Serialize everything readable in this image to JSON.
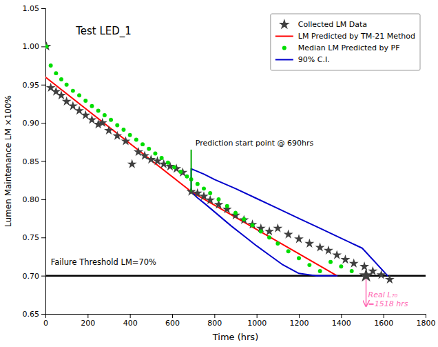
{
  "chart_data": {
    "type": "scatter",
    "title": "Test LED_1",
    "xlabel": "Time (hrs)",
    "ylabel": "Lumen Maintenance LM ×100%",
    "xlim": [
      0,
      1800
    ],
    "ylim": [
      0.65,
      1.05
    ],
    "xticks": [
      0,
      200,
      400,
      600,
      800,
      1000,
      1200,
      1400,
      1600,
      1800
    ],
    "yticks": [
      0.65,
      {
        "value": 0.7,
        "label": "0.70"
      },
      0.75,
      {
        "value": 0.8,
        "label": "0.80"
      },
      0.85,
      {
        "value": 0.9,
        "label": "0.90"
      },
      0.95,
      {
        "value": 1.0,
        "label": "1.00"
      },
      1.05
    ],
    "grid": false,
    "legend": "upper right",
    "series": [
      {
        "name": "Collected LM Data",
        "type": "scatter",
        "marker": "star",
        "color": "#404040",
        "x": [
          5,
          25,
          50,
          75,
          100,
          130,
          160,
          190,
          220,
          250,
          270,
          300,
          340,
          380,
          410,
          440,
          470,
          500,
          530,
          560,
          590,
          620,
          650,
          690,
          720,
          750,
          780,
          820,
          860,
          900,
          940,
          980,
          1020,
          1060,
          1100,
          1150,
          1200,
          1250,
          1300,
          1340,
          1380,
          1420,
          1460,
          1510,
          1550,
          1590,
          1630
        ],
        "values": [
          1.0,
          0.946,
          0.941,
          0.936,
          0.928,
          0.922,
          0.916,
          0.91,
          0.904,
          0.898,
          0.9,
          0.89,
          0.883,
          0.876,
          0.846,
          0.862,
          0.857,
          0.852,
          0.85,
          0.846,
          0.843,
          0.84,
          0.835,
          0.81,
          0.808,
          0.804,
          0.799,
          0.793,
          0.787,
          0.779,
          0.773,
          0.767,
          0.762,
          0.758,
          0.762,
          0.754,
          0.748,
          0.742,
          0.737,
          0.733,
          0.727,
          0.721,
          0.716,
          0.712,
          0.706,
          0.701,
          0.695
        ]
      },
      {
        "name": "LM Predicted by TM-21 Method",
        "type": "line",
        "line_style": "solid",
        "color": "#ff0000",
        "x": [
          0,
          690,
          1380
        ],
        "values": [
          0.96,
          0.81,
          0.7
        ]
      },
      {
        "name": "Median LM Predicted by PF",
        "type": "scatter",
        "marker": "circle",
        "color": "#00dd00",
        "x": [
          5,
          25,
          50,
          75,
          100,
          130,
          160,
          190,
          220,
          250,
          280,
          310,
          340,
          370,
          400,
          430,
          460,
          490,
          520,
          550,
          580,
          610,
          640,
          670,
          690,
          720,
          750,
          780,
          820,
          860,
          900,
          940,
          980,
          1020,
          1060,
          1100,
          1150,
          1200,
          1250,
          1300,
          1350,
          1400,
          1450,
          1518
        ],
        "values": [
          1.0,
          0.975,
          0.965,
          0.957,
          0.95,
          0.942,
          0.936,
          0.929,
          0.922,
          0.916,
          0.91,
          0.904,
          0.897,
          0.891,
          0.884,
          0.878,
          0.872,
          0.866,
          0.86,
          0.854,
          0.848,
          0.842,
          0.836,
          0.83,
          0.826,
          0.82,
          0.814,
          0.808,
          0.8,
          0.791,
          0.782,
          0.774,
          0.766,
          0.758,
          0.75,
          0.742,
          0.732,
          0.723,
          0.714,
          0.706,
          0.718,
          0.712,
          0.706,
          0.7
        ]
      },
      {
        "name": "90% C.I.",
        "type": "line",
        "line_style": "solid",
        "color": "#0000cc",
        "x": [
          690,
          750,
          800,
          900,
          1000,
          1100,
          1200,
          1300,
          1400,
          1500,
          1620,
          null,
          690,
          720,
          760,
          820,
          880,
          940,
          1000,
          1060,
          1120,
          1200,
          1280,
          1350,
          1380,
          null,
          690,
          690
        ],
        "values": [
          0.84,
          0.833,
          0.826,
          0.814,
          0.801,
          0.788,
          0.775,
          0.762,
          0.749,
          0.736,
          0.7,
          null,
          0.81,
          0.802,
          0.793,
          0.779,
          0.765,
          0.752,
          0.739,
          0.727,
          0.715,
          0.703,
          0.7,
          0.7,
          0.7,
          null,
          0.81,
          0.84
        ]
      }
    ],
    "hlines": [
      {
        "y": 0.7,
        "color": "#000000"
      }
    ],
    "vlines": [
      {
        "x": 690,
        "y": [
          0.81,
          0.865
        ],
        "color": "#00aa00"
      }
    ],
    "arrows": [
      {
        "x": 1518,
        "y": [
          0.7,
          0.66
        ],
        "color": "#ff69b4"
      }
    ],
    "points": [
      {
        "x": 1518,
        "y": 0.7,
        "marker": "star",
        "color": "#404040"
      }
    ],
    "annotations": [
      {
        "text": "Prediction start point @ 690hrs",
        "x": 710,
        "y": 0.868,
        "color": "#000000"
      },
      {
        "text": "Failure Threshold LM=70%",
        "x": 25,
        "y": 0.718,
        "color": "#000000"
      },
      {
        "text": "Real L₇₀\n=1518 hrs",
        "x": 1528,
        "y": 0.68,
        "color": "#ff69b4"
      }
    ]
  }
}
